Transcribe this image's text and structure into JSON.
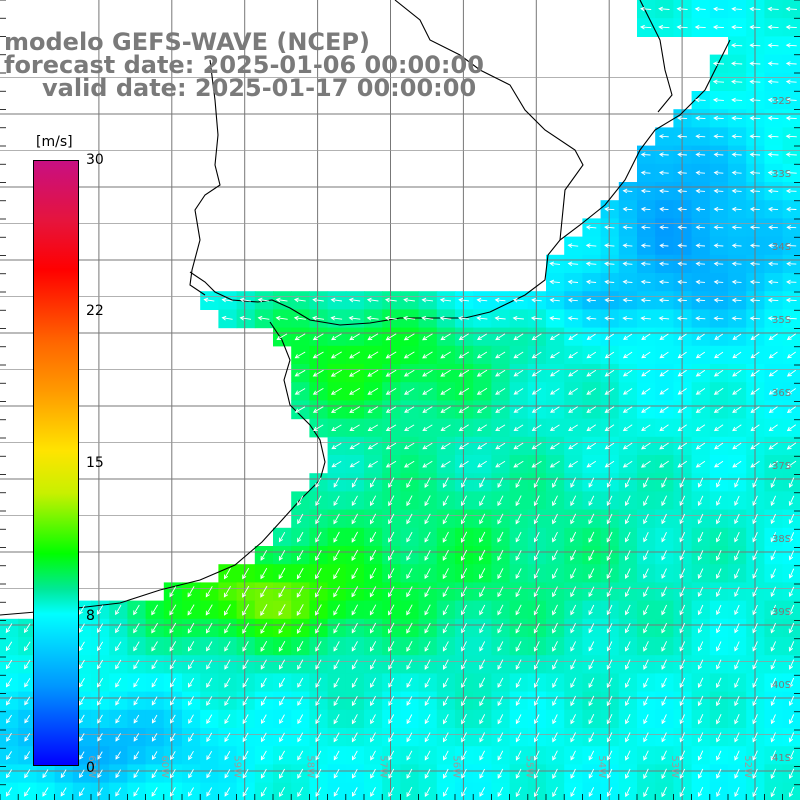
{
  "title": {
    "model": "modelo GEFS-WAVE (NCEP)",
    "forecast_date": "forecast date: 2025-01-06 00:00:00",
    "valid_date": "valid date: 2025-01-17 00:00:00"
  },
  "colorbar": {
    "unit": "[m/s]",
    "ticks": [
      "30",
      "22",
      "15",
      "8",
      "0"
    ],
    "tick_values": [
      30,
      22,
      15,
      8,
      0
    ],
    "range": [
      0,
      30
    ],
    "colors": [
      "#0000ff",
      "#0096ff",
      "#00ffff",
      "#00e89a",
      "#00ff00",
      "#c8f000",
      "#ffe400",
      "#ff9900",
      "#ff6600",
      "#ff0000",
      "#e6143c",
      "#c80f82"
    ]
  },
  "map": {
    "lon_range": [
      -62,
      -51
    ],
    "lat_range": [
      -41.2,
      -30.5
    ],
    "lat_labels": [
      "32S",
      "33S",
      "34S",
      "35S",
      "36S",
      "37S",
      "38S",
      "39S",
      "40S",
      "41S"
    ],
    "lat_values": [
      -32,
      -33,
      -34,
      -35,
      -36,
      -37,
      -38,
      -39,
      -40,
      -41
    ],
    "lon_labels": [
      "61W",
      "60W",
      "59W",
      "58W",
      "57W",
      "56W",
      "55W",
      "54W",
      "53W",
      "52W"
    ],
    "lon_values": [
      -61,
      -60,
      -59,
      -58,
      -57,
      -56,
      -55,
      -54,
      -53,
      -52
    ],
    "grid": true,
    "field": "wind speed (m/s) with wind direction arrows",
    "wind_direction": "from northeast",
    "background_color": "#ffffff",
    "coast_color": "#000000"
  }
}
